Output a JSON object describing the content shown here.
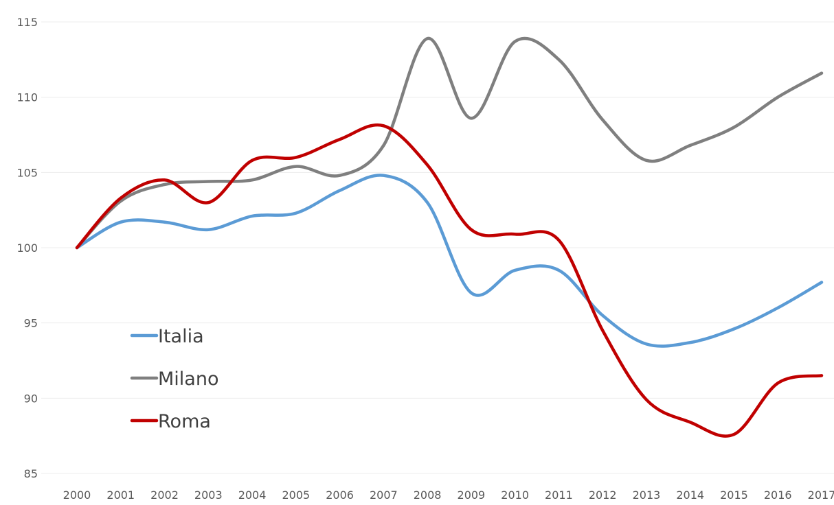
{
  "chart_data": {
    "type": "line",
    "title": "",
    "xlabel": "",
    "ylabel": "",
    "categories": [
      "2000",
      "2001",
      "2002",
      "2003",
      "2004",
      "2005",
      "2006",
      "2007",
      "2008",
      "2009",
      "2010",
      "2011",
      "2012",
      "2013",
      "2014",
      "2015",
      "2016",
      "2017"
    ],
    "ylim": [
      85,
      115
    ],
    "yticks": [
      85,
      90,
      95,
      100,
      105,
      110,
      115
    ],
    "grid": true,
    "legend_position": "left",
    "series": [
      {
        "name": "Italia",
        "color": "#5b9bd5",
        "values": [
          100,
          101.7,
          101.7,
          101.2,
          102.1,
          102.3,
          103.8,
          104.8,
          103.0,
          97.0,
          98.5,
          98.5,
          95.5,
          93.6,
          93.7,
          94.6,
          96.0,
          97.7
        ]
      },
      {
        "name": "Milano",
        "color": "#7f7f7f",
        "values": [
          100,
          103.1,
          104.2,
          104.4,
          104.5,
          105.4,
          104.8,
          106.8,
          113.9,
          108.6,
          113.7,
          112.5,
          108.5,
          105.8,
          106.8,
          108.0,
          110.0,
          111.6
        ]
      },
      {
        "name": "Roma",
        "color": "#c00000",
        "values": [
          100,
          103.3,
          104.5,
          103.0,
          105.8,
          106.0,
          107.2,
          108.1,
          105.5,
          101.2,
          100.9,
          100.5,
          94.5,
          89.9,
          88.4,
          87.6,
          91.0,
          91.5
        ]
      }
    ]
  }
}
